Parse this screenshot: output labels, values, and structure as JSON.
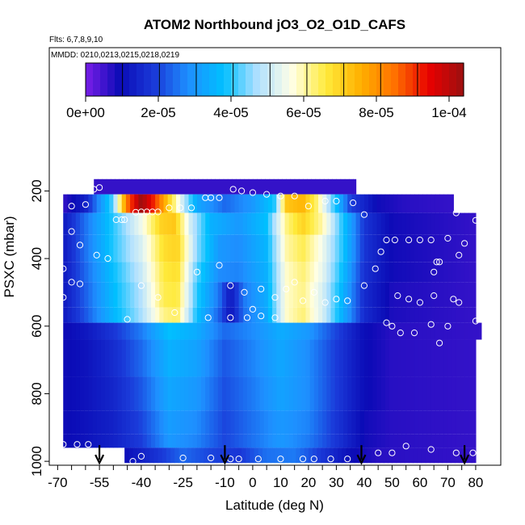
{
  "chart_data": {
    "type": "heatmap",
    "title": "ATOM2 Northbound jO3_O2_O1D_CAFS",
    "flights_label": "Flts: 6,7,8,9,10",
    "dates_label": "MMDD: 0210,0213,0215,0218,0219",
    "xlabel": "Latitude (deg N)",
    "ylabel": "PSXC (mbar)",
    "xlim": [
      -70,
      85
    ],
    "ylim_inverted": [
      1000,
      60
    ],
    "x_ticks": [
      -70,
      -55,
      -40,
      -25,
      -10,
      0,
      10,
      20,
      30,
      40,
      50,
      60,
      70,
      80
    ],
    "x_tick_labels": [
      "-70",
      "-55",
      "-40",
      "-25",
      "-10",
      "0",
      "10",
      "20",
      "30",
      "40",
      "50",
      "60",
      "70",
      "80"
    ],
    "y_ticks": [
      200,
      400,
      600,
      800,
      1000
    ],
    "y_tick_labels": [
      "200",
      "400",
      "600",
      "800",
      "1000"
    ],
    "colorbar": {
      "range": [
        0,
        0.000104
      ],
      "ticks": [
        0,
        2e-05,
        4e-05,
        6e-05,
        8e-05,
        0.0001
      ],
      "tick_labels": [
        "0e+00",
        "2e-05",
        "4e-05",
        "6e-05",
        "8e-05",
        "1e-04"
      ],
      "colors": [
        "#7a1ee8",
        "#0b0bb6",
        "#1a3ad9",
        "#1e90ff",
        "#00bfff",
        "#b0e0ff",
        "#ffffe6",
        "#ffea3a",
        "#ffb000",
        "#ff7000",
        "#e80000",
        "#9b1010"
      ]
    },
    "pressure_levels": [
      {
        "p_top": 165,
        "p_bot": 210,
        "lat_min": -57,
        "lat_max": 37,
        "profile": [
          [
            -57,
            6e-06
          ],
          [
            37,
            6e-06
          ]
        ]
      },
      {
        "p_top": 210,
        "p_bot": 265,
        "lat_min": -68,
        "lat_max": 72,
        "profile": [
          [
            -68,
            6e-06
          ],
          [
            -60,
            1.4e-05
          ],
          [
            -50,
            4.3e-05
          ],
          [
            -45,
            8.5e-05
          ],
          [
            -40,
            0.000104
          ],
          [
            -35,
            9e-05
          ],
          [
            -30,
            7e-05
          ],
          [
            -25,
            5e-05
          ],
          [
            -20,
            3.3e-05
          ],
          [
            -10,
            2.4e-05
          ],
          [
            0,
            3e-05
          ],
          [
            8,
            4e-05
          ],
          [
            12,
            7.2e-05
          ],
          [
            18,
            7.5e-05
          ],
          [
            23,
            6.3e-05
          ],
          [
            28,
            4.5e-05
          ],
          [
            35,
            2e-05
          ],
          [
            45,
            9e-06
          ],
          [
            55,
            7e-06
          ],
          [
            72,
            6e-06
          ]
        ]
      },
      {
        "p_top": 265,
        "p_bot": 330,
        "lat_min": -68,
        "lat_max": 80,
        "profile": [
          [
            -68,
            1.2e-05
          ],
          [
            -60,
            2.5e-05
          ],
          [
            -50,
            4e-05
          ],
          [
            -40,
            5.5e-05
          ],
          [
            -33,
            7e-05
          ],
          [
            -28,
            7.2e-05
          ],
          [
            -22,
            5e-05
          ],
          [
            -15,
            3.5e-05
          ],
          [
            -5,
            3e-05
          ],
          [
            5,
            3.8e-05
          ],
          [
            12,
            6.2e-05
          ],
          [
            18,
            7e-05
          ],
          [
            25,
            6e-05
          ],
          [
            32,
            4e-05
          ],
          [
            40,
            1.8e-05
          ],
          [
            50,
            9e-06
          ],
          [
            80,
            6e-06
          ]
        ]
      },
      {
        "p_top": 330,
        "p_bot": 410,
        "lat_min": -68,
        "lat_max": 80,
        "profile": [
          [
            -68,
            1.2e-05
          ],
          [
            -60,
            2.5e-05
          ],
          [
            -50,
            4e-05
          ],
          [
            -40,
            5.2e-05
          ],
          [
            -32,
            6.8e-05
          ],
          [
            -27,
            7e-05
          ],
          [
            -20,
            4.5e-05
          ],
          [
            -12,
            3e-05
          ],
          [
            -5,
            2.8e-05
          ],
          [
            5,
            3.6e-05
          ],
          [
            12,
            6e-05
          ],
          [
            18,
            6.5e-05
          ],
          [
            25,
            5.5e-05
          ],
          [
            32,
            4e-05
          ],
          [
            40,
            1.8e-05
          ],
          [
            50,
            9e-06
          ],
          [
            80,
            6e-06
          ]
        ]
      },
      {
        "p_top": 410,
        "p_bot": 470,
        "lat_min": -68,
        "lat_max": 80,
        "profile": [
          [
            -68,
            1.2e-05
          ],
          [
            -60,
            2.4e-05
          ],
          [
            -50,
            3.8e-05
          ],
          [
            -40,
            5e-05
          ],
          [
            -32,
            6.6e-05
          ],
          [
            -27,
            6.8e-05
          ],
          [
            -20,
            4.2e-05
          ],
          [
            -12,
            2.8e-05
          ],
          [
            -5,
            2.7e-05
          ],
          [
            5,
            3.5e-05
          ],
          [
            12,
            5.8e-05
          ],
          [
            18,
            6.3e-05
          ],
          [
            25,
            5.4e-05
          ],
          [
            32,
            3.8e-05
          ],
          [
            40,
            1.7e-05
          ],
          [
            50,
            9e-06
          ],
          [
            80,
            6e-06
          ]
        ]
      },
      {
        "p_top": 470,
        "p_bot": 545,
        "lat_min": -68,
        "lat_max": 80,
        "profile": [
          [
            -68,
            1.2e-05
          ],
          [
            -60,
            2.3e-05
          ],
          [
            -50,
            3.7e-05
          ],
          [
            -40,
            4.8e-05
          ],
          [
            -32,
            6.5e-05
          ],
          [
            -27,
            6.6e-05
          ],
          [
            -20,
            4e-05
          ],
          [
            -12,
            2.5e-05
          ],
          [
            -8,
            1.2e-05
          ],
          [
            -3,
            2.6e-05
          ],
          [
            5,
            3.4e-05
          ],
          [
            12,
            5.8e-05
          ],
          [
            18,
            6.2e-05
          ],
          [
            25,
            5.2e-05
          ],
          [
            32,
            3.6e-05
          ],
          [
            40,
            1.6e-05
          ],
          [
            50,
            8e-06
          ],
          [
            80,
            6e-06
          ]
        ]
      },
      {
        "p_top": 545,
        "p_bot": 590,
        "lat_min": -68,
        "lat_max": 80,
        "profile": [
          [
            -68,
            1.2e-05
          ],
          [
            -60,
            2.2e-05
          ],
          [
            -50,
            3.6e-05
          ],
          [
            -40,
            4.7e-05
          ],
          [
            -32,
            6.2e-05
          ],
          [
            -27,
            6.4e-05
          ],
          [
            -20,
            3.8e-05
          ],
          [
            -12,
            2.3e-05
          ],
          [
            -8,
            1.1e-05
          ],
          [
            -3,
            2.5e-05
          ],
          [
            5,
            3.3e-05
          ],
          [
            12,
            5.8e-05
          ],
          [
            18,
            6.3e-05
          ],
          [
            25,
            5.2e-05
          ],
          [
            32,
            3.5e-05
          ],
          [
            40,
            1.6e-05
          ],
          [
            50,
            8e-06
          ],
          [
            80,
            6e-06
          ]
        ]
      },
      {
        "p_top": 590,
        "p_bot": 640,
        "lat_min": -68,
        "lat_max": 82,
        "profile": [
          [
            -68,
            9e-06
          ],
          [
            -60,
            1.2e-05
          ],
          [
            -50,
            1.8e-05
          ],
          [
            -40,
            2.6e-05
          ],
          [
            -30,
            3.8e-05
          ],
          [
            -20,
            3.4e-05
          ],
          [
            -10,
            2.4e-05
          ],
          [
            0,
            2.8e-05
          ],
          [
            10,
            3.4e-05
          ],
          [
            20,
            3e-05
          ],
          [
            30,
            2e-05
          ],
          [
            40,
            1e-05
          ],
          [
            50,
            7e-06
          ],
          [
            82,
            6e-06
          ]
        ]
      },
      {
        "p_top": 640,
        "p_bot": 750,
        "lat_min": -68,
        "lat_max": 80,
        "profile": [
          [
            -68,
            9e-06
          ],
          [
            -60,
            1.1e-05
          ],
          [
            -50,
            1.6e-05
          ],
          [
            -40,
            2.4e-05
          ],
          [
            -30,
            3.5e-05
          ],
          [
            -20,
            3.2e-05
          ],
          [
            -10,
            2.2e-05
          ],
          [
            0,
            2.7e-05
          ],
          [
            10,
            3.3e-05
          ],
          [
            20,
            2.8e-05
          ],
          [
            30,
            1.9e-05
          ],
          [
            40,
            1e-05
          ],
          [
            50,
            7e-06
          ],
          [
            80,
            6e-06
          ]
        ]
      },
      {
        "p_top": 750,
        "p_bot": 850,
        "lat_min": -68,
        "lat_max": 80,
        "profile": [
          [
            -68,
            9e-06
          ],
          [
            -60,
            1.1e-05
          ],
          [
            -50,
            1.5e-05
          ],
          [
            -40,
            2.2e-05
          ],
          [
            -30,
            3.3e-05
          ],
          [
            -20,
            3e-05
          ],
          [
            -10,
            2.1e-05
          ],
          [
            0,
            2.6e-05
          ],
          [
            10,
            3.2e-05
          ],
          [
            20,
            2.8e-05
          ],
          [
            30,
            1.9e-05
          ],
          [
            40,
            1e-05
          ],
          [
            50,
            7e-06
          ],
          [
            80,
            6e-06
          ]
        ]
      },
      {
        "p_top": 850,
        "p_bot": 920,
        "lat_min": -68,
        "lat_max": 80,
        "profile": [
          [
            -68,
            9e-06
          ],
          [
            -60,
            1.1e-05
          ],
          [
            -50,
            1.4e-05
          ],
          [
            -40,
            2e-05
          ],
          [
            -30,
            3.1e-05
          ],
          [
            -20,
            2.8e-05
          ],
          [
            -10,
            2e-05
          ],
          [
            0,
            2.5e-05
          ],
          [
            10,
            3e-05
          ],
          [
            20,
            2.7e-05
          ],
          [
            30,
            1.8e-05
          ],
          [
            40,
            9e-06
          ],
          [
            50,
            7e-06
          ],
          [
            80,
            6e-06
          ]
        ]
      },
      {
        "p_top": 920,
        "p_bot": 960,
        "lat_min": -68,
        "lat_max": 80,
        "profile": [
          [
            -68,
            9e-06
          ],
          [
            -60,
            1.1e-05
          ],
          [
            -50,
            1.4e-05
          ],
          [
            -40,
            1.9e-05
          ],
          [
            -30,
            3e-05
          ],
          [
            -20,
            2.7e-05
          ],
          [
            -10,
            2e-05
          ],
          [
            0,
            2.5e-05
          ],
          [
            10,
            3e-05
          ],
          [
            20,
            2.6e-05
          ],
          [
            30,
            1.8e-05
          ],
          [
            40,
            9e-06
          ],
          [
            50,
            7e-06
          ],
          [
            80,
            6e-06
          ]
        ]
      },
      {
        "p_top": 960,
        "p_bot": 1005,
        "lat_min": -46,
        "lat_max": 80,
        "profile": [
          [
            -46,
            1e-05
          ],
          [
            -35,
            1.7e-05
          ],
          [
            -25,
            2.4e-05
          ],
          [
            -15,
            2e-05
          ],
          [
            -5,
            1.8e-05
          ],
          [
            5,
            2.5e-05
          ],
          [
            15,
            2.6e-05
          ],
          [
            25,
            1.8e-05
          ],
          [
            35,
            1e-05
          ],
          [
            45,
            7e-06
          ],
          [
            80,
            6e-06
          ]
        ]
      }
    ],
    "markers": [
      [
        -55,
        975
      ],
      [
        -10,
        975
      ],
      [
        39,
        975
      ],
      [
        76,
        975
      ]
    ],
    "points": [
      [
        -55,
        190
      ],
      [
        -57,
        195
      ],
      [
        -60,
        240
      ],
      [
        -65,
        245
      ],
      [
        -49,
        285
      ],
      [
        -47,
        285
      ],
      [
        -46,
        285
      ],
      [
        -42,
        263
      ],
      [
        -40,
        262
      ],
      [
        -38,
        262
      ],
      [
        -36,
        262
      ],
      [
        -34,
        262
      ],
      [
        -30,
        250
      ],
      [
        -26,
        250
      ],
      [
        -22,
        250
      ],
      [
        -17,
        220
      ],
      [
        -15,
        220
      ],
      [
        -12,
        220
      ],
      [
        -7,
        195
      ],
      [
        -4,
        200
      ],
      [
        0,
        205
      ],
      [
        5,
        210
      ],
      [
        10,
        215
      ],
      [
        15,
        215
      ],
      [
        20,
        245
      ],
      [
        26,
        230
      ],
      [
        30,
        230
      ],
      [
        36,
        235
      ],
      [
        40,
        270
      ],
      [
        -65,
        320
      ],
      [
        -62,
        360
      ],
      [
        -56,
        390
      ],
      [
        -52,
        400
      ],
      [
        -68,
        430
      ],
      [
        -65,
        470
      ],
      [
        -62,
        475
      ],
      [
        -68,
        515
      ],
      [
        -40,
        480
      ],
      [
        -34,
        515
      ],
      [
        -28,
        560
      ],
      [
        -20,
        440
      ],
      [
        -12,
        420
      ],
      [
        -8,
        480
      ],
      [
        -3,
        500
      ],
      [
        0,
        550
      ],
      [
        3,
        490
      ],
      [
        8,
        515
      ],
      [
        12,
        490
      ],
      [
        15,
        470
      ],
      [
        18,
        525
      ],
      [
        22,
        500
      ],
      [
        26,
        530
      ],
      [
        30,
        520
      ],
      [
        34,
        525
      ],
      [
        40,
        480
      ],
      [
        44,
        430
      ],
      [
        46,
        380
      ],
      [
        48,
        345
      ],
      [
        51,
        345
      ],
      [
        56,
        345
      ],
      [
        60,
        345
      ],
      [
        64,
        345
      ],
      [
        70,
        340
      ],
      [
        74,
        390
      ],
      [
        76,
        355
      ],
      [
        80,
        287
      ],
      [
        73,
        265
      ],
      [
        66,
        410
      ],
      [
        67,
        410
      ],
      [
        65,
        440
      ],
      [
        60,
        530
      ],
      [
        65,
        510
      ],
      [
        72,
        520
      ],
      [
        74,
        530
      ],
      [
        56,
        520
      ],
      [
        52,
        510
      ],
      [
        48,
        590
      ],
      [
        50,
        600
      ],
      [
        53,
        620
      ],
      [
        58,
        620
      ],
      [
        64,
        595
      ],
      [
        67,
        650
      ],
      [
        70,
        600
      ],
      [
        80,
        585
      ],
      [
        -45,
        580
      ],
      [
        -16,
        575
      ],
      [
        -8,
        575
      ],
      [
        -2,
        575
      ],
      [
        3,
        570
      ],
      [
        8,
        575
      ],
      [
        -68,
        950
      ],
      [
        -63,
        950
      ],
      [
        -59,
        950
      ],
      [
        -40,
        985
      ],
      [
        -25,
        990
      ],
      [
        -15,
        990
      ],
      [
        -8,
        993
      ],
      [
        -5,
        993
      ],
      [
        2,
        993
      ],
      [
        10,
        993
      ],
      [
        18,
        993
      ],
      [
        22,
        993
      ],
      [
        28,
        993
      ],
      [
        34,
        993
      ],
      [
        45,
        975
      ],
      [
        50,
        975
      ],
      [
        55,
        955
      ],
      [
        64,
        965
      ],
      [
        73,
        975
      ],
      [
        79,
        975
      ],
      [
        -43,
        1000
      ]
    ]
  }
}
